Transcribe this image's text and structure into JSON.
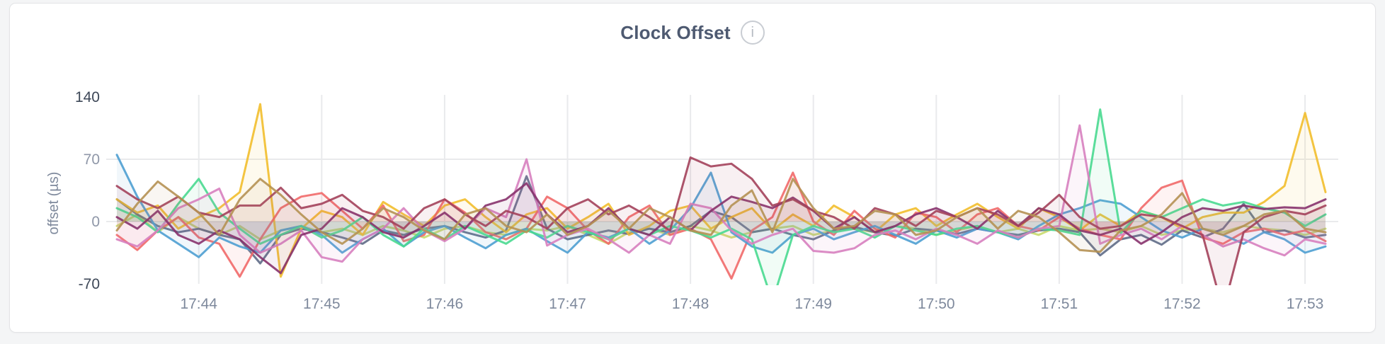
{
  "header": {
    "title": "Clock Offset",
    "info_icon": "i"
  },
  "colors": {
    "page_background": "#f4f5f6",
    "card_background": "#ffffff",
    "card_border": "#e3e4e6",
    "title_text": "#4e5a71",
    "grid": "#e9eaec",
    "x_tick_text": "#7e899c",
    "y_tick_inner_text": "#8f97a8",
    "y_tick_minmax_text": "#3d4757",
    "info_icon_border": "#c9cdd3",
    "info_icon_text": "#b4bac1"
  },
  "chart_data": {
    "type": "line",
    "title": "Clock Offset",
    "xlabel": "",
    "ylabel": "offset (µs)",
    "ylim": [
      -70,
      140
    ],
    "grid": "vertical-per-minute plus horizontal at 70 and 0",
    "legend_position": "none",
    "x_tick_labels": [
      "17:44",
      "17:45",
      "17:46",
      "17:47",
      "17:48",
      "17:49",
      "17:50",
      "17:51",
      "17:52",
      "17:53"
    ],
    "x_tick_indices": [
      4,
      10,
      16,
      22,
      28,
      34,
      40,
      46,
      52,
      58
    ],
    "points_per_series": 60,
    "sample_interval_seconds": 10,
    "y_ticks": [
      {
        "value": 140,
        "label": "140",
        "style": "minmax",
        "gridline": false
      },
      {
        "value": 70,
        "label": "70",
        "style": "inner",
        "gridline": true
      },
      {
        "value": 0,
        "label": "0",
        "style": "inner",
        "gridline": true
      },
      {
        "value": -70,
        "label": "-70",
        "style": "minmax",
        "gridline": false
      }
    ],
    "series": [
      {
        "color": "#C9DB6D",
        "values": [
          -5,
          8,
          -12,
          5,
          -8,
          -15,
          -5,
          -20,
          -10,
          -5,
          -12,
          -8,
          -15,
          -5,
          -10,
          -18,
          -8,
          -5,
          -12,
          -15,
          -8,
          -10,
          -5,
          -15,
          -25,
          -12,
          -8,
          -15,
          -5,
          -10,
          -18,
          -12,
          -8,
          -5,
          -15,
          -10,
          -8,
          -12,
          -5,
          -8,
          -15,
          -10,
          -5,
          -12,
          -8,
          -15,
          -5,
          -10,
          -8,
          -12,
          -5,
          -15,
          -10,
          -8,
          -12,
          -5,
          -8,
          -10,
          -15,
          -8
        ]
      },
      {
        "color": "#5F6C87",
        "values": [
          25,
          8,
          -5,
          -12,
          -8,
          -15,
          -20,
          -47,
          -15,
          -8,
          -12,
          -18,
          -25,
          -10,
          -15,
          -8,
          -5,
          -12,
          -18,
          -10,
          51,
          -8,
          -20,
          -15,
          -10,
          -14,
          -8,
          -12,
          -5,
          12,
          5,
          -12,
          -8,
          -15,
          -20,
          -10,
          -6,
          -12,
          -16,
          -8,
          -10,
          -14,
          -8,
          -12,
          -15,
          -10,
          -8,
          -12,
          -38,
          -20,
          -15,
          -26,
          -10,
          -18,
          -8,
          20,
          -12,
          -10,
          -18,
          -15
        ]
      },
      {
        "color": "#F2BE2C",
        "values": [
          25,
          10,
          18,
          -8,
          5,
          15,
          33,
          132,
          -62,
          -8,
          12,
          5,
          -15,
          22,
          8,
          -5,
          18,
          25,
          5,
          -12,
          8,
          15,
          -8,
          5,
          20,
          -15,
          -5,
          12,
          18,
          -8,
          5,
          15,
          -10,
          8,
          -5,
          18,
          5,
          -12,
          8,
          15,
          -5,
          8,
          20,
          5,
          -8,
          15,
          5,
          -10,
          8,
          -5,
          12,
          5,
          -8,
          5,
          10,
          10,
          22,
          40,
          122,
          33
        ]
      },
      {
        "color": "#F16969",
        "values": [
          -15,
          -32,
          -10,
          5,
          -18,
          -25,
          -62,
          -20,
          15,
          28,
          32,
          12,
          -8,
          18,
          -22,
          -15,
          25,
          10,
          -12,
          -20,
          -8,
          28,
          15,
          -10,
          -25,
          5,
          18,
          -15,
          -8,
          -20,
          -64,
          -10,
          5,
          55,
          0,
          -15,
          12,
          -8,
          -18,
          10,
          5,
          -12,
          8,
          15,
          -5,
          -10,
          5,
          -8,
          -15,
          -20,
          15,
          38,
          46,
          -18,
          -25,
          -12,
          -8,
          -15,
          -10,
          -22
        ]
      },
      {
        "color": "#4E9FD1",
        "values": [
          75,
          28,
          -10,
          -25,
          -40,
          -18,
          -28,
          -35,
          -10,
          -5,
          -15,
          -35,
          -20,
          -8,
          -28,
          -12,
          -5,
          -18,
          -30,
          -15,
          -8,
          -22,
          -35,
          -12,
          -18,
          -8,
          -25,
          -10,
          15,
          55,
          -12,
          -28,
          -35,
          -15,
          -8,
          -20,
          -12,
          -5,
          -15,
          -25,
          -10,
          -18,
          -8,
          -12,
          -20,
          -5,
          8,
          15,
          24,
          20,
          5,
          -10,
          -18,
          -8,
          -15,
          -25,
          -12,
          -20,
          -35,
          -28
        ]
      },
      {
        "color": "#49D990",
        "values": [
          15,
          5,
          -12,
          20,
          48,
          10,
          -8,
          -25,
          -15,
          -5,
          -18,
          -10,
          5,
          -15,
          -28,
          -8,
          -20,
          -5,
          -15,
          -25,
          -10,
          -18,
          -5,
          -12,
          -20,
          -8,
          -15,
          -5,
          -10,
          -18,
          -8,
          -20,
          -90,
          -15,
          -5,
          -12,
          -8,
          -18,
          -5,
          -10,
          -15,
          -8,
          -5,
          -12,
          -18,
          -8,
          -10,
          -15,
          126,
          -13,
          12,
          5,
          15,
          25,
          18,
          22,
          15,
          10,
          -5,
          8
        ]
      },
      {
        "color": "#D77FBF",
        "values": [
          -20,
          -28,
          -10,
          15,
          25,
          37,
          -15,
          -35,
          -25,
          -10,
          -40,
          -45,
          -20,
          -8,
          15,
          -10,
          -22,
          -8,
          15,
          5,
          70,
          -27,
          -15,
          -8,
          -20,
          -35,
          -15,
          -25,
          20,
          15,
          -10,
          -25,
          -15,
          -8,
          -33,
          -35,
          -30,
          -15,
          -10,
          -20,
          -8,
          -15,
          -25,
          -10,
          -18,
          -8,
          -5,
          108,
          -25,
          -15,
          -8,
          -20,
          -5,
          -15,
          -28,
          -20,
          -30,
          -38,
          -20,
          -25
        ]
      },
      {
        "color": "#87326D",
        "values": [
          5,
          -8,
          12,
          -15,
          -25,
          -10,
          -20,
          -40,
          -58,
          -15,
          -8,
          15,
          5,
          -12,
          -18,
          -5,
          10,
          -8,
          18,
          25,
          43,
          8,
          -12,
          -5,
          15,
          -8,
          -15,
          5,
          -10,
          12,
          28,
          22,
          15,
          27,
          12,
          -8,
          5,
          -12,
          -5,
          8,
          15,
          5,
          -8,
          12,
          -5,
          15,
          8,
          -10,
          -15,
          -8,
          -25,
          -12,
          5,
          15,
          12,
          18,
          14,
          16,
          15,
          25
        ]
      },
      {
        "color": "#A3415B",
        "values": [
          40,
          25,
          15,
          28,
          10,
          5,
          18,
          18,
          38,
          15,
          20,
          30,
          12,
          5,
          -8,
          15,
          25,
          8,
          -5,
          12,
          5,
          -8,
          15,
          25,
          8,
          18,
          5,
          -10,
          72,
          62,
          65,
          48,
          18,
          25,
          12,
          5,
          -8,
          15,
          8,
          -5,
          12,
          5,
          15,
          8,
          -5,
          10,
          30,
          5,
          -8,
          -5,
          8,
          5,
          -5,
          -15,
          -100,
          -12,
          5,
          12,
          8,
          18
        ]
      },
      {
        "color": "#B59153",
        "values": [
          -10,
          20,
          45,
          28,
          10,
          -15,
          25,
          48,
          30,
          8,
          -12,
          -25,
          -8,
          15,
          5,
          -10,
          -20,
          8,
          15,
          -5,
          -12,
          8,
          -15,
          -5,
          12,
          -8,
          15,
          5,
          -10,
          -15,
          18,
          35,
          -12,
          48,
          15,
          -8,
          -5,
          12,
          8,
          -15,
          -10,
          5,
          15,
          -8,
          12,
          5,
          -12,
          -32,
          -34,
          -10,
          -5,
          8,
          32,
          -8,
          -15,
          -5,
          8,
          12,
          -8,
          -12
        ]
      }
    ]
  }
}
